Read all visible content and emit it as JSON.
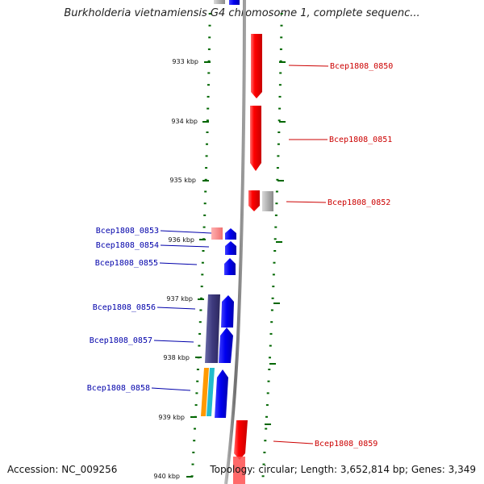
{
  "title": "Burkholderia vietnamiensis G4 chromosome 1, complete sequenc...",
  "footer": {
    "accession": "Accession: NC_009256",
    "stats": "Topology: circular; Length: 3,652,814 bp; Genes: 3,349"
  },
  "colors": {
    "forward_gene": "#ff0000",
    "reverse_gene": "#0000ee",
    "forward_label": "#cc0000",
    "reverse_label": "#0000aa",
    "tick": "#006600",
    "backbone": "#888888"
  },
  "scale_ticks": [
    "933 kbp",
    "934 kbp",
    "935 kbp",
    "936 kbp",
    "937 kbp",
    "938 kbp",
    "939 kbp",
    "940 kbp"
  ],
  "genes": [
    {
      "id": "Bcep1808_0850",
      "strand": "forward"
    },
    {
      "id": "Bcep1808_0851",
      "strand": "forward"
    },
    {
      "id": "Bcep1808_0852",
      "strand": "forward"
    },
    {
      "id": "Bcep1808_0853",
      "strand": "reverse"
    },
    {
      "id": "Bcep1808_0854",
      "strand": "reverse"
    },
    {
      "id": "Bcep1808_0855",
      "strand": "reverse"
    },
    {
      "id": "Bcep1808_0856",
      "strand": "reverse"
    },
    {
      "id": "Bcep1808_0857",
      "strand": "reverse"
    },
    {
      "id": "Bcep1808_0858",
      "strand": "reverse"
    },
    {
      "id": "Bcep1808_0859",
      "strand": "forward"
    }
  ]
}
